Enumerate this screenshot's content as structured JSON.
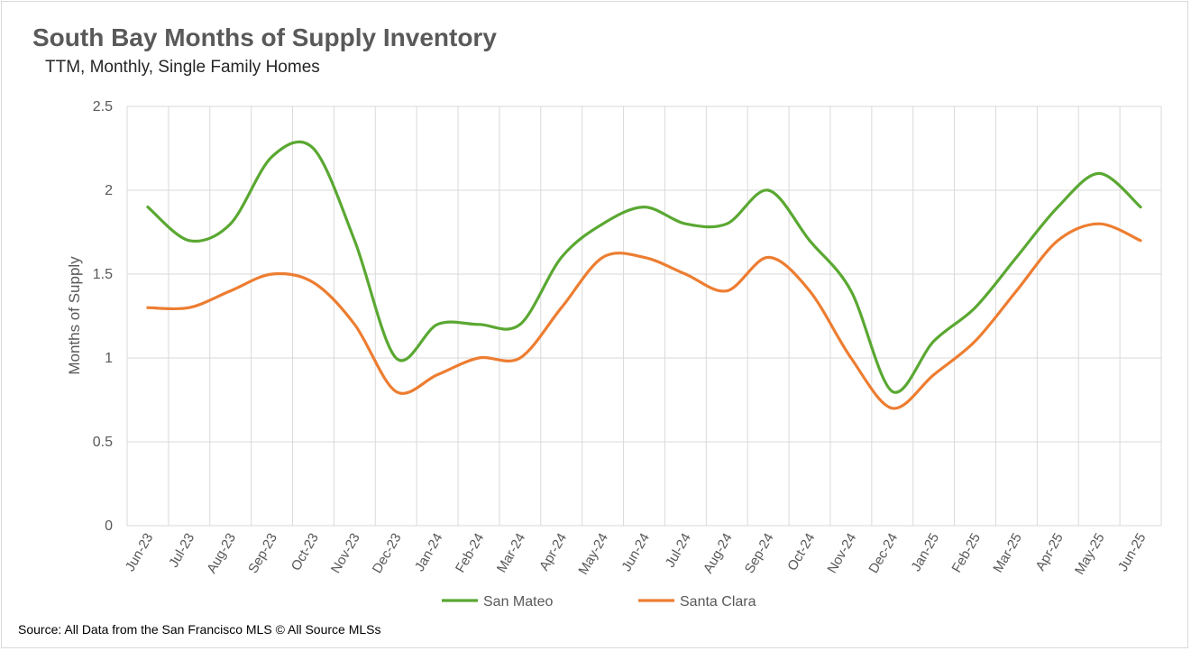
{
  "title": "South Bay Months of Supply Inventory",
  "subtitle": "TTM, Monthly, Single Family Homes",
  "source": "Source: All Data from the San Francisco MLS © All Source MLSs",
  "colors": {
    "san_mateo": "#5aa832",
    "santa_clara": "#ed7d31",
    "grid": "#d9d9d9",
    "text": "#595959"
  },
  "chart_data": {
    "type": "line",
    "title": "South Bay Months of Supply Inventory",
    "subtitle": "TTM, Monthly, Single Family Homes",
    "xlabel": "",
    "ylabel": "Months of Supply",
    "ylim": [
      0,
      2.5
    ],
    "yticks": [
      0,
      0.5,
      1,
      1.5,
      2,
      2.5
    ],
    "ytick_labels": [
      "0",
      "0.5",
      "1",
      "1.5",
      "2",
      "2.5"
    ],
    "grid": true,
    "legend_position": "bottom",
    "categories": [
      "Jun-23",
      "Jul-23",
      "Aug-23",
      "Sep-23",
      "Oct-23",
      "Nov-23",
      "Dec-23",
      "Jan-24",
      "Feb-24",
      "Mar-24",
      "Apr-24",
      "May-24",
      "Jun-24",
      "Jul-24",
      "Aug-24",
      "Sep-24",
      "Oct-24",
      "Nov-24",
      "Dec-24",
      "Jan-25",
      "Feb-25",
      "Mar-25",
      "Apr-25",
      "May-25",
      "Jun-25"
    ],
    "series": [
      {
        "name": "San Mateo",
        "color": "#5aa832",
        "values": [
          1.9,
          1.7,
          1.8,
          2.2,
          2.25,
          1.7,
          1.0,
          1.2,
          1.2,
          1.2,
          1.6,
          1.8,
          1.9,
          1.8,
          1.8,
          2.0,
          1.7,
          1.4,
          0.8,
          1.1,
          1.3,
          1.6,
          1.9,
          2.1,
          1.9
        ]
      },
      {
        "name": "Santa Clara",
        "color": "#ed7d31",
        "values": [
          1.3,
          1.3,
          1.4,
          1.5,
          1.45,
          1.2,
          0.8,
          0.9,
          1.0,
          1.0,
          1.3,
          1.6,
          1.6,
          1.5,
          1.4,
          1.6,
          1.4,
          1.0,
          0.7,
          0.9,
          1.1,
          1.4,
          1.7,
          1.8,
          1.7
        ]
      }
    ]
  }
}
